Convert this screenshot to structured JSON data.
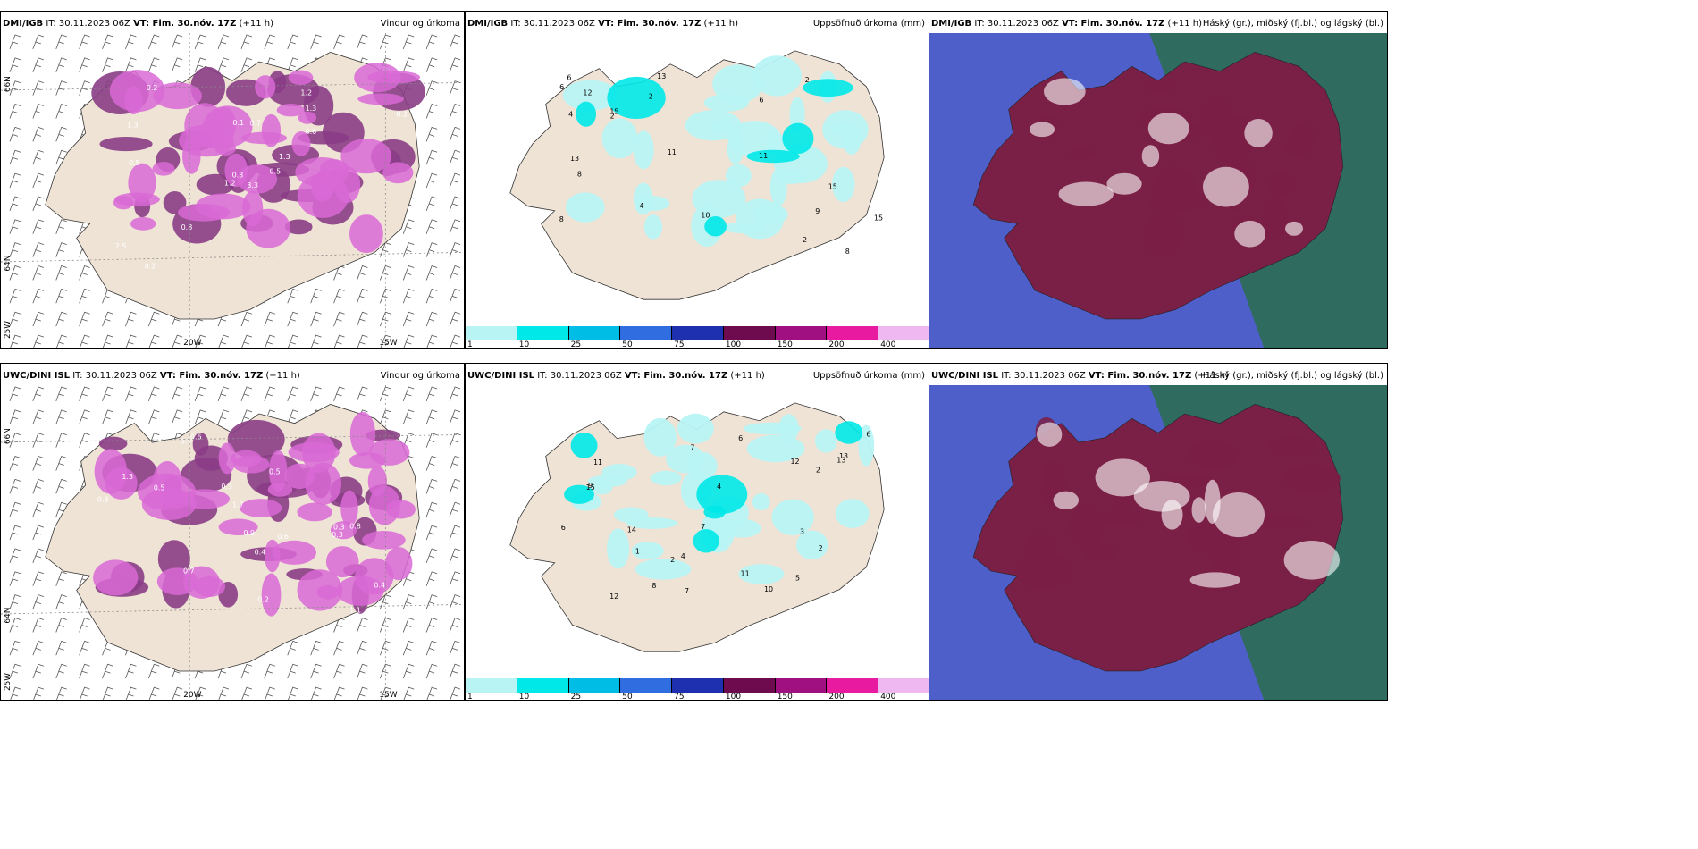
{
  "panels": [
    {
      "id": "p1",
      "src": "DMI/IGB",
      "it": " IT: 30.11.2023 06Z ",
      "vt": "VT: Fim. 30.nóv. 17Z",
      "off": " (+11 h)",
      "title": "Vindur og úrkoma",
      "type": "wind"
    },
    {
      "id": "p2",
      "src": "DMI/IGB",
      "it": " IT: 30.11.2023 06Z ",
      "vt": "VT: Fim. 30.nóv. 17Z",
      "off": " (+11 h)",
      "title": "Uppsöfnuð úrkoma (mm)",
      "type": "accum"
    },
    {
      "id": "p3",
      "src": "DMI/IGB",
      "it": " IT: 30.11.2023 06Z ",
      "vt": "VT: Fim. 30.nóv. 17Z",
      "off": " (+11 h)",
      "title": "Háský (gr.), miðský (fj.bl.) og lágský (bl.)",
      "type": "cloud"
    },
    {
      "id": "p4",
      "src": "UWC/DINI ISL",
      "it": " IT: 30.11.2023 06Z ",
      "vt": "VT: Fim. 30.nóv. 17Z",
      "off": " (+11 h)",
      "title": "Vindur og úrkoma",
      "type": "wind"
    },
    {
      "id": "p5",
      "src": "UWC/DINI ISL",
      "it": " IT: 30.11.2023 06Z ",
      "vt": "VT: Fim. 30.nóv. 17Z",
      "off": " (+11 h)",
      "title": "Uppsöfnuð úrkoma (mm)",
      "type": "accum"
    },
    {
      "id": "p6",
      "src": "UWC/DINI ISL",
      "it": " IT: 30.11.2023 06Z ",
      "vt": "VT: Fim. 30.nóv. 17Z",
      "off": " (+11 h)",
      "title": "Háský (gr.), miðský (fj.bl.) og lágský (bl.)",
      "type": "cloud"
    }
  ],
  "axis_labels": {
    "lon20": "20W",
    "lon15": "15W",
    "lat66": "66N",
    "lat64": "64N",
    "lon25": "25W"
  },
  "colorbar": {
    "labels": [
      "1",
      "10",
      "25",
      "50",
      "75",
      "100",
      "150",
      "200",
      "400"
    ],
    "colors": [
      "#b8f4f4",
      "#00e8e8",
      "#00bde6",
      "#2f6de0",
      "#1e2fb0",
      "#6e0a4e",
      "#a01080",
      "#e81aa0",
      "#f0b8f0"
    ]
  },
  "colors": {
    "land": "#efe3d6",
    "precip": "#d96ad6",
    "precip_dark": "#8a3d86",
    "sea_cloud": "#4f5fc9",
    "high_cloud": "#7a1f45",
    "green": "#2e6b5a"
  },
  "precip_values_top": [
    "3.3",
    "1.3",
    "0.3",
    "2.5",
    "1.3",
    "0.8",
    "1.2",
    "0.7",
    "1.3",
    "0.5",
    "0.2",
    "0.8",
    "0.5",
    "0.2",
    "1.2",
    "0.6",
    "0.2",
    "0.1"
  ],
  "precip_values_bottom": [
    "0.5",
    "1.3",
    "1.7",
    "0.9",
    "0.7",
    "0.5",
    "0.3",
    "0.6",
    "0.4",
    "0.3",
    "0.6",
    "0.3",
    "1.1",
    "0.8",
    "0.4",
    "0.2",
    "0.3",
    "0.9"
  ],
  "accum_values_top": [
    "12",
    "13",
    "11",
    "8",
    "6",
    "6",
    "4",
    "15",
    "13",
    "15",
    "10",
    "9",
    "8",
    "11",
    "15",
    "2",
    "6",
    "2",
    "2",
    "2",
    "8",
    "4"
  ],
  "accum_values_bottom": [
    "2",
    "4",
    "6",
    "12",
    "7",
    "8",
    "6",
    "13",
    "11",
    "15",
    "11",
    "12",
    "13",
    "7",
    "9",
    "10",
    "14",
    "6",
    "5",
    "3",
    "2",
    "4",
    "7",
    "2",
    "1"
  ]
}
